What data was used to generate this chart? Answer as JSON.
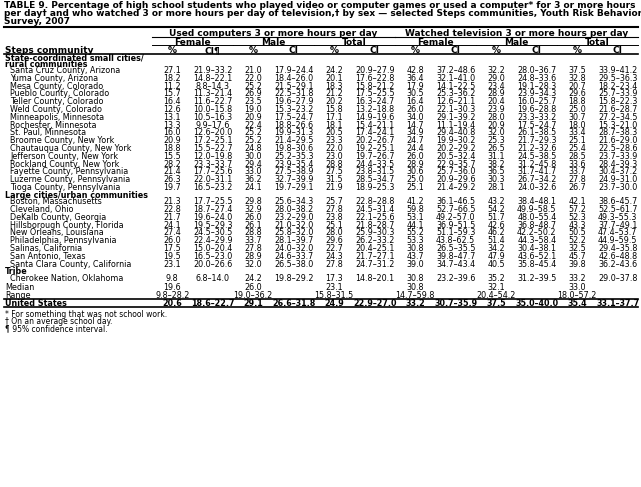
{
  "title_lines": [
    "TABLE 9. Percentage of high school students who played video or computer games or used a computer* for 3 or more hours",
    "per day† and who watched 3 or more hours per day of television,† by sex — selected Steps communities, Youth Risk Behavior",
    "Survey, 2007"
  ],
  "col_header_1": "Used computers 3 or more hours per day",
  "col_header_2": "Watched television 3 or more hours per day",
  "sub_headers": [
    "Female",
    "Male",
    "Total",
    "Female",
    "Male",
    "Total"
  ],
  "col_labels": [
    "%",
    "CI¶",
    "%",
    "CI",
    "%",
    "CI",
    "%",
    "CI",
    "%",
    "CI",
    "%",
    "CI"
  ],
  "row_label_col": "Steps community",
  "sections": [
    {
      "name_lines": [
        "State-coordinated small cities/",
        "rural communities"
      ],
      "rows": [
        [
          "Santa Cruz County, Arizona",
          "27.1",
          "21.9–33.2",
          "21.0",
          "17.9–24.4",
          "24.2",
          "20.9–27.9",
          "42.8",
          "37.2–48.6",
          "32.2",
          "28.0–36.7",
          "37.5",
          "33.9–41.2"
        ],
        [
          "Yuma County, Arizona",
          "18.2",
          "14.8–22.1",
          "22.0",
          "18.4–26.0",
          "20.1",
          "17.6–22.8",
          "36.4",
          "32.1–41.0",
          "29.0",
          "24.8–33.6",
          "32.8",
          "29.5–36.3"
        ],
        [
          "Mesa County, Colorado",
          "11.2",
          "8.8–14.3",
          "25.2",
          "21.5–29.1",
          "18.3",
          "15.8–21.2",
          "17.9",
          "14.1–22.5",
          "23.4",
          "19.1–28.3",
          "20.7",
          "18.2–23.4"
        ],
        [
          "Pueblo County, Colorado",
          "15.7",
          "11.3–21.4",
          "26.9",
          "22.5–31.8",
          "21.2",
          "17.5–25.5",
          "30.5",
          "25.3–36.2",
          "28.9",
          "23.9–34.3",
          "29.6",
          "25.7–33.9"
        ],
        [
          "Teller County, Colorado",
          "16.4",
          "11.6–22.7",
          "23.5",
          "19.6–27.9",
          "20.2",
          "16.3–24.7",
          "16.4",
          "12.6–21.1",
          "20.4",
          "16.0–25.7",
          "18.8",
          "15.8–22.3"
        ],
        [
          "Weld County, Colorado",
          "12.6",
          "10.0–15.8",
          "19.0",
          "15.3–23.2",
          "15.8",
          "13.2–18.8",
          "26.0",
          "22.1–30.3",
          "23.9",
          "19.6–28.8",
          "25.0",
          "21.6–28.7"
        ],
        [
          "Minneapolis, Minnesota",
          "13.1",
          "10.5–16.3",
          "20.9",
          "17.5–24.7",
          "17.1",
          "14.9–19.6",
          "34.0",
          "29.1–39.2",
          "28.0",
          "23.3–33.2",
          "30.7",
          "27.2–34.5"
        ],
        [
          "Rochester, Minnesota",
          "13.3",
          "9.9–17.6",
          "22.4",
          "18.8–26.6",
          "18.1",
          "15.4–21.1",
          "14.7",
          "11.1–19.4",
          "20.9",
          "17.5–24.7",
          "18.0",
          "15.3–21.0"
        ],
        [
          "St. Paul, Minnesota",
          "16.0",
          "12.6–20.0",
          "25.2",
          "19.9–31.3",
          "20.5",
          "17.4–24.1",
          "34.9",
          "29.4–40.8",
          "32.0",
          "26.1–38.5",
          "33.4",
          "28.7–38.3"
        ],
        [
          "Broome County, New York",
          "20.9",
          "17.2–25.1",
          "25.2",
          "21.4–29.5",
          "23.3",
          "20.2–26.7",
          "24.7",
          "19.9–30.2",
          "25.3",
          "21.7–29.3",
          "25.1",
          "21.6–29.0"
        ],
        [
          "Chautauqua County, New York",
          "18.8",
          "15.5–22.7",
          "24.8",
          "19.8–30.6",
          "22.0",
          "19.2–25.1",
          "24.4",
          "20.2–29.2",
          "26.5",
          "21.2–32.6",
          "25.4",
          "22.5–28.6"
        ],
        [
          "Jefferson County, New York",
          "15.5",
          "12.0–19.8",
          "30.0",
          "25.2–35.3",
          "23.0",
          "19.7–26.7",
          "26.0",
          "20.5–32.4",
          "31.1",
          "24.5–38.5",
          "28.5",
          "23.7–33.9"
        ],
        [
          "Rockland County, New York",
          "28.2",
          "23.3–33.7",
          "29.4",
          "23.9–35.4",
          "28.8",
          "24.4–33.5",
          "28.9",
          "22.9–35.7",
          "38.2",
          "31.2–45.8",
          "33.6",
          "28.4–39.3"
        ],
        [
          "Fayette County, Pennsylvania",
          "21.4",
          "17.7–25.6",
          "33.0",
          "27.5–38.9",
          "27.5",
          "23.8–31.5",
          "30.6",
          "25.7–36.0",
          "36.5",
          "31.7–41.7",
          "33.7",
          "30.4–37.2"
        ],
        [
          "Luzerne County, Pennsylvania",
          "26.3",
          "22.0–31.1",
          "36.2",
          "32.7–39.9",
          "31.5",
          "28.5–34.7",
          "25.0",
          "20.9–29.6",
          "30.3",
          "26.7–34.2",
          "27.8",
          "24.9–31.0"
        ],
        [
          "Tioga County, Pennsylvania",
          "19.7",
          "16.5–23.2",
          "24.1",
          "19.7–29.1",
          "21.9",
          "18.9–25.3",
          "25.1",
          "21.4–29.2",
          "28.1",
          "24.0–32.6",
          "26.7",
          "23.7–30.0"
        ]
      ]
    },
    {
      "name_lines": [
        "Large cities/urban communities"
      ],
      "rows": [
        [
          "Boston, Massachusetts",
          "21.3",
          "17.7–25.5",
          "29.8",
          "25.6–34.3",
          "25.7",
          "22.8–28.8",
          "41.2",
          "36.1–46.5",
          "43.2",
          "38.4–48.1",
          "42.1",
          "38.6–45.7"
        ],
        [
          "Cleveland, Ohio",
          "22.8",
          "18.7–27.4",
          "32.9",
          "28.0–38.2",
          "27.8",
          "24.5–31.4",
          "59.8",
          "52.7–66.5",
          "54.2",
          "49.9–58.5",
          "57.2",
          "52.5–61.7"
        ],
        [
          "DeKalb County, Georgia",
          "21.7",
          "19.6–24.0",
          "26.0",
          "23.2–29.0",
          "23.8",
          "22.1–25.6",
          "53.1",
          "49.2–57.0",
          "51.7",
          "48.0–55.4",
          "52.3",
          "49.3–55.3"
        ],
        [
          "Hillsborough County, Florida",
          "24.1",
          "19.5–29.3",
          "26.1",
          "21.0–32.0",
          "25.1",
          "21.8–28.7",
          "44.1",
          "36.9–51.5",
          "42.6",
          "36.8–48.7",
          "43.3",
          "37.7–49.1"
        ],
        [
          "New Orleans, Louisiana",
          "27.4",
          "24.5–30.5",
          "28.8",
          "25.8–32.0",
          "28.0",
          "25.9–30.3",
          "55.2",
          "51.1–59.3",
          "46.2",
          "42.2–50.2",
          "50.5",
          "47.4–53.7"
        ],
        [
          "Philadelphia, Pennsylvania",
          "26.0",
          "22.4–29.9",
          "33.7",
          "28.1–39.7",
          "29.6",
          "26.2–33.2",
          "53.3",
          "43.8–62.5",
          "51.4",
          "44.3–58.4",
          "52.2",
          "44.9–59.5"
        ],
        [
          "Salinas, California",
          "17.5",
          "15.0–20.4",
          "27.8",
          "24.0–32.0",
          "22.7",
          "20.4–25.1",
          "30.8",
          "26.5–35.5",
          "34.2",
          "30.4–38.1",
          "32.5",
          "29.4–35.8"
        ],
        [
          "San Antonio, Texas",
          "19.5",
          "16.5–23.0",
          "28.9",
          "24.6–33.7",
          "24.3",
          "21.7–27.1",
          "43.7",
          "39.8–47.7",
          "47.9",
          "43.6–52.1",
          "45.7",
          "42.6–48.8"
        ],
        [
          "Santa Clara County, California",
          "23.1",
          "20.0–26.6",
          "32.0",
          "26.5–38.0",
          "27.8",
          "24.7–31.2",
          "39.0",
          "34.7–43.4",
          "40.5",
          "35.8–45.4",
          "39.8",
          "36.2–43.6"
        ]
      ]
    },
    {
      "name_lines": [
        "Tribe"
      ],
      "rows": [
        [
          "Cherokee Nation, Oklahoma",
          "9.8",
          "6.8–14.0",
          "24.2",
          "19.8–29.2",
          "17.3",
          "14.8–20.1",
          "30.8",
          "23.2–39.6",
          "35.2",
          "31.2–39.5",
          "33.2",
          "29.0–37.8"
        ]
      ]
    }
  ],
  "median_vals": [
    "19.6",
    "26.0",
    "23.1",
    "30.8",
    "32.1",
    "33.0"
  ],
  "range_vals": [
    "9.8–28.2",
    "19.0–36.2",
    "15.8–31.5",
    "14.7–59.8",
    "20.4–54.2",
    "18.0–57.2"
  ],
  "us_row": [
    "United States",
    "20.6",
    "18.6–22.7",
    "29.1",
    "26.6–31.8",
    "24.9",
    "22.9–27.0",
    "33.2",
    "30.7–35.9",
    "37.5",
    "35.0–40.0",
    "35.4",
    "33.1–37.7"
  ],
  "footnotes": [
    "* For something that was not school work.",
    "† On an average school day.",
    "¶ 95% confidence interval."
  ]
}
